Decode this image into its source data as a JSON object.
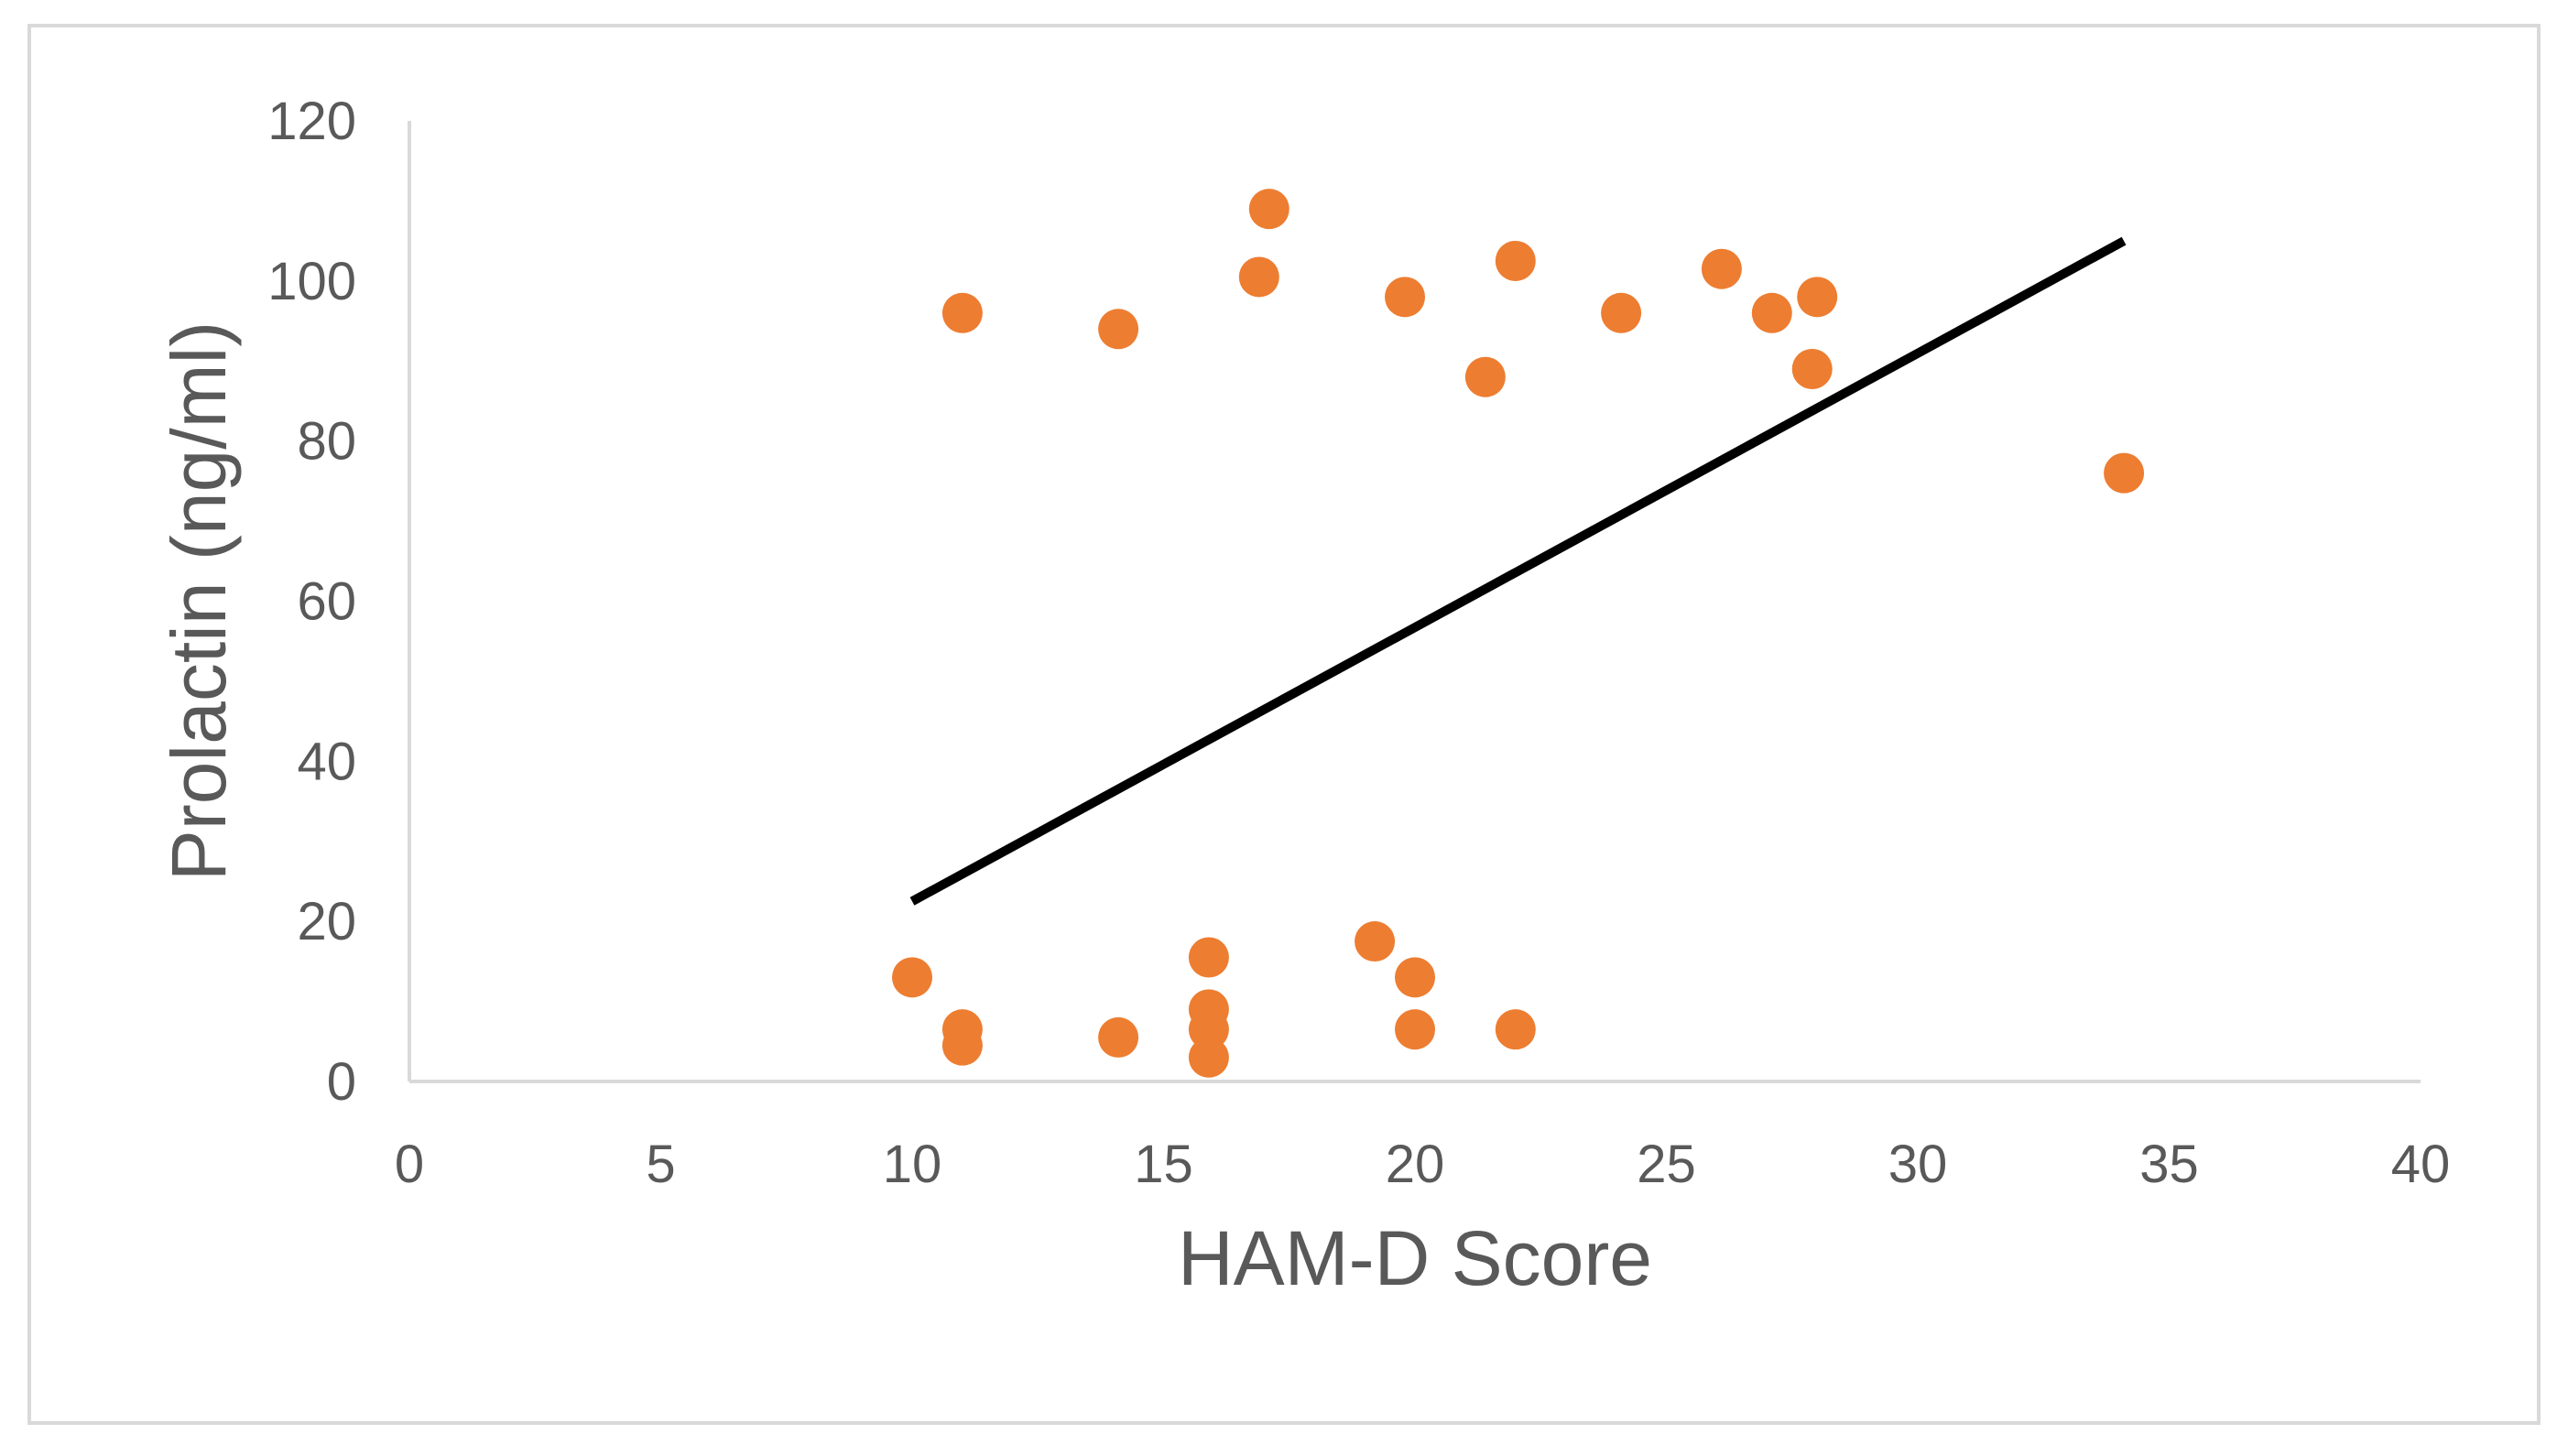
{
  "chart_data": {
    "type": "scatter",
    "title": "",
    "xlabel": "HAM-D Score",
    "ylabel": "Prolactin (ng/ml)",
    "xlim": [
      0,
      40
    ],
    "ylim": [
      0,
      120
    ],
    "x_ticks": [
      0,
      5,
      10,
      15,
      20,
      25,
      30,
      35,
      40
    ],
    "y_ticks": [
      0,
      20,
      40,
      60,
      80,
      100,
      120
    ],
    "grid": false,
    "legend": "none",
    "series": [
      {
        "color": "#ed7d31",
        "points": [
          {
            "x": 10,
            "y": 13
          },
          {
            "x": 11,
            "y": 96
          },
          {
            "x": 11,
            "y": 6.5
          },
          {
            "x": 11,
            "y": 4.5
          },
          {
            "x": 14.1,
            "y": 94
          },
          {
            "x": 14.1,
            "y": 5.5
          },
          {
            "x": 15.9,
            "y": 15.5
          },
          {
            "x": 15.9,
            "y": 9
          },
          {
            "x": 15.9,
            "y": 6.5
          },
          {
            "x": 15.9,
            "y": 3
          },
          {
            "x": 16.9,
            "y": 100.5
          },
          {
            "x": 17.1,
            "y": 109
          },
          {
            "x": 19.2,
            "y": 17.5
          },
          {
            "x": 19.8,
            "y": 98
          },
          {
            "x": 20,
            "y": 13
          },
          {
            "x": 20,
            "y": 6.5
          },
          {
            "x": 21.4,
            "y": 88
          },
          {
            "x": 22,
            "y": 102.5
          },
          {
            "x": 22,
            "y": 6.5
          },
          {
            "x": 24.1,
            "y": 96
          },
          {
            "x": 26.1,
            "y": 101.5
          },
          {
            "x": 27.1,
            "y": 96
          },
          {
            "x": 27.9,
            "y": 89
          },
          {
            "x": 28,
            "y": 98
          },
          {
            "x": 34.1,
            "y": 76
          }
        ]
      }
    ],
    "trendline": {
      "color": "#000000",
      "x": [
        10,
        34.1
      ],
      "y": [
        22.5,
        105
      ]
    }
  }
}
